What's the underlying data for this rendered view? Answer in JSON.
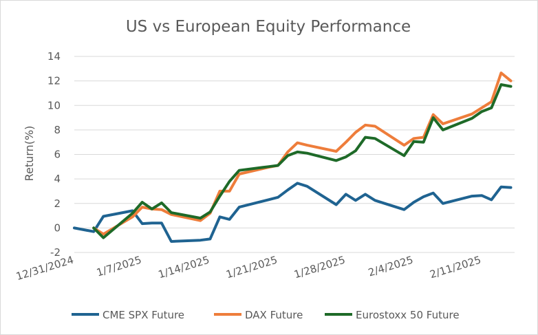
{
  "chart_data": {
    "type": "line",
    "title": "US vs European Equity Performance",
    "xlabel": "",
    "ylabel": "Return(%)",
    "ylim": [
      -2,
      14
    ],
    "yticks": [
      -2,
      0,
      2,
      4,
      6,
      8,
      10,
      12,
      14
    ],
    "xlim": [
      "2024-12-31",
      "2025-02-13"
    ],
    "xticks": [
      {
        "date": "2024-12-31",
        "label": "12/31/2024"
      },
      {
        "date": "2025-01-07",
        "label": "1/7/2025"
      },
      {
        "date": "2025-01-14",
        "label": "1/14/2025"
      },
      {
        "date": "2025-01-21",
        "label": "1/21/2025"
      },
      {
        "date": "2025-01-28",
        "label": "1/28/2025"
      },
      {
        "date": "2025-02-04",
        "label": "2/4/2025"
      },
      {
        "date": "2025-02-11",
        "label": "2/11/2025"
      }
    ],
    "grid": "horizontal",
    "legend": "bottom",
    "series": [
      {
        "name": "CME SPX Future",
        "color": "#1f6391",
        "points": [
          [
            "2024-12-31",
            0.0
          ],
          [
            "2025-01-02",
            -0.3
          ],
          [
            "2025-01-03",
            0.95
          ],
          [
            "2025-01-06",
            1.4
          ],
          [
            "2025-01-07",
            0.35
          ],
          [
            "2025-01-08",
            0.4
          ],
          [
            "2025-01-09",
            0.4
          ],
          [
            "2025-01-10",
            -1.1
          ],
          [
            "2025-01-13",
            -1.0
          ],
          [
            "2025-01-14",
            -0.9
          ],
          [
            "2025-01-15",
            0.9
          ],
          [
            "2025-01-16",
            0.7
          ],
          [
            "2025-01-17",
            1.7
          ],
          [
            "2025-01-20",
            2.3
          ],
          [
            "2025-01-21",
            2.5
          ],
          [
            "2025-01-22",
            3.1
          ],
          [
            "2025-01-23",
            3.65
          ],
          [
            "2025-01-24",
            3.4
          ],
          [
            "2025-01-27",
            1.9
          ],
          [
            "2025-01-28",
            2.75
          ],
          [
            "2025-01-29",
            2.25
          ],
          [
            "2025-01-30",
            2.75
          ],
          [
            "2025-01-31",
            2.25
          ],
          [
            "2025-02-03",
            1.5
          ],
          [
            "2025-02-04",
            2.1
          ],
          [
            "2025-02-05",
            2.55
          ],
          [
            "2025-02-06",
            2.85
          ],
          [
            "2025-02-07",
            2.0
          ],
          [
            "2025-02-10",
            2.6
          ],
          [
            "2025-02-11",
            2.65
          ],
          [
            "2025-02-12",
            2.3
          ],
          [
            "2025-02-13",
            3.35
          ],
          [
            "2025-02-14",
            3.3
          ]
        ]
      },
      {
        "name": "DAX Future",
        "color": "#ee7d3b",
        "points": [
          [
            "2025-01-02",
            0.0
          ],
          [
            "2025-01-03",
            -0.5
          ],
          [
            "2025-01-06",
            0.9
          ],
          [
            "2025-01-07",
            1.7
          ],
          [
            "2025-01-08",
            1.55
          ],
          [
            "2025-01-09",
            1.5
          ],
          [
            "2025-01-10",
            1.1
          ],
          [
            "2025-01-13",
            0.6
          ],
          [
            "2025-01-14",
            1.2
          ],
          [
            "2025-01-15",
            3.0
          ],
          [
            "2025-01-16",
            3.0
          ],
          [
            "2025-01-17",
            4.4
          ],
          [
            "2025-01-20",
            4.95
          ],
          [
            "2025-01-21",
            5.1
          ],
          [
            "2025-01-22",
            6.2
          ],
          [
            "2025-01-23",
            6.95
          ],
          [
            "2025-01-24",
            6.75
          ],
          [
            "2025-01-27",
            6.25
          ],
          [
            "2025-01-28",
            7.0
          ],
          [
            "2025-01-29",
            7.8
          ],
          [
            "2025-01-30",
            8.4
          ],
          [
            "2025-01-31",
            8.3
          ],
          [
            "2025-02-03",
            6.75
          ],
          [
            "2025-02-04",
            7.3
          ],
          [
            "2025-02-05",
            7.4
          ],
          [
            "2025-02-06",
            9.25
          ],
          [
            "2025-02-07",
            8.5
          ],
          [
            "2025-02-10",
            9.3
          ],
          [
            "2025-02-11",
            9.8
          ],
          [
            "2025-02-12",
            10.3
          ],
          [
            "2025-02-13",
            12.65
          ],
          [
            "2025-02-14",
            12.0
          ]
        ]
      },
      {
        "name": "Eurostoxx 50 Future",
        "color": "#1e6a28",
        "points": [
          [
            "2025-01-02",
            0.0
          ],
          [
            "2025-01-03",
            -0.8
          ],
          [
            "2025-01-06",
            1.2
          ],
          [
            "2025-01-07",
            2.1
          ],
          [
            "2025-01-08",
            1.55
          ],
          [
            "2025-01-09",
            2.05
          ],
          [
            "2025-01-10",
            1.25
          ],
          [
            "2025-01-13",
            0.8
          ],
          [
            "2025-01-14",
            1.3
          ],
          [
            "2025-01-15",
            2.6
          ],
          [
            "2025-01-16",
            3.8
          ],
          [
            "2025-01-17",
            4.7
          ],
          [
            "2025-01-20",
            5.0
          ],
          [
            "2025-01-21",
            5.1
          ],
          [
            "2025-01-22",
            5.9
          ],
          [
            "2025-01-23",
            6.2
          ],
          [
            "2025-01-24",
            6.1
          ],
          [
            "2025-01-27",
            5.5
          ],
          [
            "2025-01-28",
            5.8
          ],
          [
            "2025-01-29",
            6.3
          ],
          [
            "2025-01-30",
            7.4
          ],
          [
            "2025-01-31",
            7.3
          ],
          [
            "2025-02-03",
            5.9
          ],
          [
            "2025-02-04",
            7.05
          ],
          [
            "2025-02-05",
            7.0
          ],
          [
            "2025-02-06",
            9.0
          ],
          [
            "2025-02-07",
            8.0
          ],
          [
            "2025-02-10",
            8.95
          ],
          [
            "2025-02-11",
            9.5
          ],
          [
            "2025-02-12",
            9.8
          ],
          [
            "2025-02-13",
            11.7
          ],
          [
            "2025-02-14",
            11.55
          ]
        ]
      }
    ]
  }
}
